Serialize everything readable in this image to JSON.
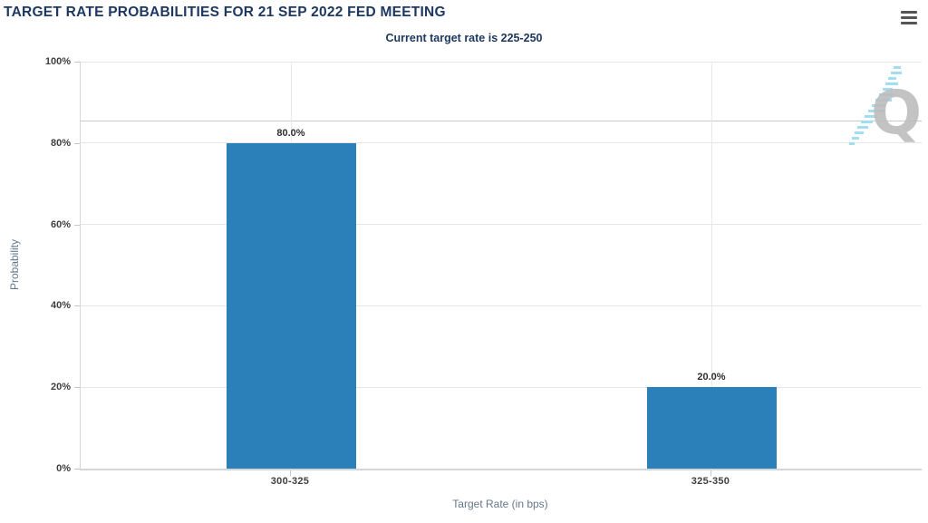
{
  "chart_data": {
    "type": "bar",
    "title": "TARGET RATE PROBABILITIES FOR 21 SEP 2022 FED MEETING",
    "subtitle": "Current target rate is 225-250",
    "xlabel": "Target Rate (in bps)",
    "ylabel": "Probability",
    "categories": [
      "300-325",
      "325-350"
    ],
    "values": [
      80.0,
      20.0
    ],
    "data_labels": [
      "80.0%",
      "20.0%"
    ],
    "ylim": [
      0,
      100
    ],
    "ytick_step": 20,
    "ytick_labels": [
      "0%",
      "20%",
      "40%",
      "60%",
      "80%",
      "100%"
    ],
    "grid": true,
    "legend": "none",
    "bar_color": "#2b80b9",
    "extra_gridline_percent": 85.5
  },
  "export_menu": {
    "icon": "hamburger-menu-icon"
  },
  "watermark": {
    "letter": "Q"
  },
  "colors": {
    "title_text": "#1e3860",
    "tick_label": "#3f3f3f",
    "axis_title": "#66788a",
    "gridline": "#e6e6e6",
    "extra_gridline": "#c9c9c9",
    "axis_line": "#d6d6d6",
    "bar": "#2b80b9",
    "data_label": "#2f2f2f",
    "watermark_gray": "#bdbdbd",
    "watermark_blue": "#9fdcf4",
    "menu_icon": "#555555"
  }
}
